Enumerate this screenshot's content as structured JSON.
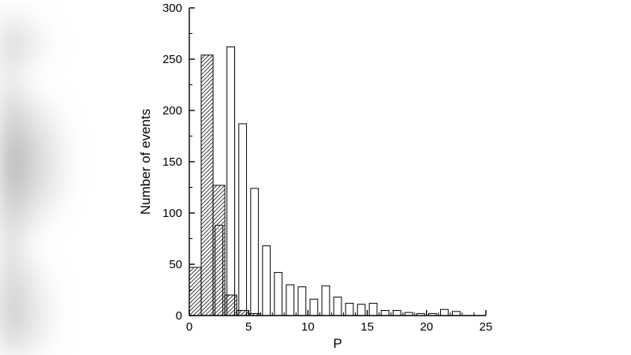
{
  "page": {
    "background_color": "#ffffff"
  },
  "chart_data": {
    "type": "bar",
    "subtype": "overlaid-histograms",
    "title": "",
    "xlabel": "P",
    "ylabel": "Number of events",
    "xlim": [
      0,
      25
    ],
    "ylim": [
      0,
      300
    ],
    "x_major_ticks": [
      0,
      5,
      10,
      15,
      20,
      25
    ],
    "y_major_ticks": [
      0,
      50,
      100,
      150,
      200,
      250,
      300
    ],
    "x_minor_step": 1,
    "y_minor_step": 25,
    "grid": false,
    "legend": "none",
    "bar_outline_color": "#000000",
    "hatch_color": "#1a1a1a",
    "series": [
      {
        "name": "hatched-histogram",
        "style": "hatched",
        "bin_width": 1,
        "bins": [
          {
            "start": 0,
            "value": 47
          },
          {
            "start": 1,
            "value": 254
          },
          {
            "start": 2,
            "value": 127
          },
          {
            "start": 3,
            "value": 20
          },
          {
            "start": 4,
            "value": 5
          },
          {
            "start": 5,
            "value": 2
          }
        ]
      },
      {
        "name": "open-histogram",
        "style": "open",
        "bar_width": 0.65,
        "points": [
          {
            "center": 2.5,
            "value": 88
          },
          {
            "center": 3.5,
            "value": 262
          },
          {
            "center": 4.5,
            "value": 187
          },
          {
            "center": 5.5,
            "value": 124
          },
          {
            "center": 6.5,
            "value": 68
          },
          {
            "center": 7.5,
            "value": 42
          },
          {
            "center": 8.5,
            "value": 30
          },
          {
            "center": 9.5,
            "value": 28
          },
          {
            "center": 10.5,
            "value": 16
          },
          {
            "center": 11.5,
            "value": 29
          },
          {
            "center": 12.5,
            "value": 18
          },
          {
            "center": 13.5,
            "value": 12
          },
          {
            "center": 14.5,
            "value": 11
          },
          {
            "center": 15.5,
            "value": 12
          },
          {
            "center": 16.5,
            "value": 5
          },
          {
            "center": 17.5,
            "value": 5
          },
          {
            "center": 18.5,
            "value": 3
          },
          {
            "center": 19.5,
            "value": 2
          },
          {
            "center": 20.5,
            "value": 2
          },
          {
            "center": 21.5,
            "value": 6
          },
          {
            "center": 22.5,
            "value": 4
          }
        ]
      }
    ]
  }
}
